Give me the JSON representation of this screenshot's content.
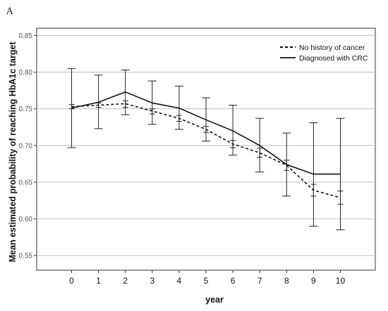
{
  "panel_label": "A",
  "chart_data": {
    "type": "line",
    "title": "",
    "xlabel": "year",
    "ylabel": "Mean estimated probability of reaching HbA1c target",
    "x": [
      0,
      1,
      2,
      3,
      4,
      5,
      6,
      7,
      8,
      9,
      10
    ],
    "xlim": [
      -1.3,
      11.3
    ],
    "ylim": [
      0.53,
      0.86
    ],
    "yticks": [
      0.55,
      0.6,
      0.65,
      0.7,
      0.75,
      0.8,
      0.85
    ],
    "ytick_labels": [
      "0.55",
      "0.60",
      "0.65",
      "0.70",
      "0.75",
      "0.80",
      "0.85"
    ],
    "grid": "horizontal",
    "legend_position": "top-right",
    "series": [
      {
        "name": "No history of cancer",
        "style": "dashed",
        "color": "#111111",
        "values": [
          0.753,
          0.755,
          0.757,
          0.747,
          0.737,
          0.722,
          0.702,
          0.69,
          0.673,
          0.639,
          0.629
        ],
        "lower": [
          0.75,
          0.752,
          0.752,
          0.743,
          0.733,
          0.718,
          0.697,
          0.684,
          0.666,
          0.631,
          0.62
        ],
        "upper": [
          0.756,
          0.758,
          0.761,
          0.75,
          0.741,
          0.726,
          0.707,
          0.696,
          0.68,
          0.647,
          0.638
        ]
      },
      {
        "name": "Diagnosed with CRC",
        "style": "solid",
        "color": "#111111",
        "values": [
          0.751,
          0.759,
          0.773,
          0.758,
          0.751,
          0.735,
          0.72,
          0.7,
          0.674,
          0.661,
          0.661
        ],
        "lower": [
          0.697,
          0.723,
          0.742,
          0.729,
          0.722,
          0.706,
          0.687,
          0.664,
          0.631,
          0.59,
          0.585
        ],
        "upper": [
          0.805,
          0.796,
          0.803,
          0.788,
          0.781,
          0.765,
          0.755,
          0.737,
          0.717,
          0.731,
          0.737
        ]
      }
    ]
  }
}
